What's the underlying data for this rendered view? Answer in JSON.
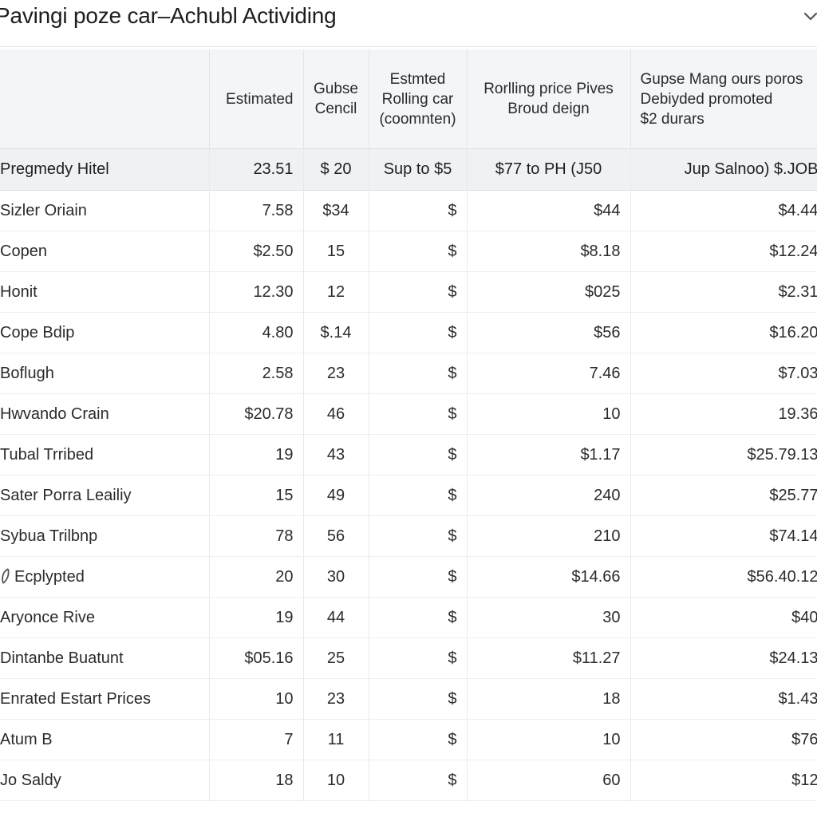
{
  "window": {
    "title": "Pavingi poze car–Achubl Actividing",
    "menu_icon": "chevron-down-icon"
  },
  "table": {
    "headers": [
      [
        ""
      ],
      [
        "Estimated"
      ],
      [
        "Gubse",
        "Cencil"
      ],
      [
        "Estmted",
        "Rolling car",
        "(coomnten)"
      ],
      [
        "Rorlling price Pives",
        "Broud deign"
      ],
      [
        "Gupse Mang ours poros",
        "Debiyded promoted",
        "$2 durars"
      ]
    ],
    "summary": {
      "name": "Pregmedy Hitel",
      "estimated": "23.51",
      "cancel": "$ 20",
      "rolling": "Sup to $5",
      "price": "$77 to PH (J50",
      "promo": "Jup Salnoo) $.JOB"
    },
    "rows": [
      {
        "name": "Sizler Oriain",
        "estimated": "7.58",
        "cancel": "$34",
        "rolling": "$",
        "price": "$44",
        "promo": "$4.44"
      },
      {
        "name": "Copen",
        "estimated": "$2.50",
        "cancel": "15",
        "rolling": "$",
        "price": "$8.18",
        "promo": "$12.24"
      },
      {
        "name": "Honit",
        "estimated": "12.30",
        "cancel": "12",
        "rolling": "$",
        "price": "$025",
        "promo": "$2.31"
      },
      {
        "name": "Cope Bdip",
        "estimated": "4.80",
        "cancel": "$.14",
        "rolling": "$",
        "price": "$56",
        "promo": "$16.20"
      },
      {
        "name": "Boflugh",
        "estimated": "2.58",
        "cancel": "23",
        "rolling": "$",
        "price": "7.46",
        "promo": "$7.03"
      },
      {
        "name": "Hwvando Crain",
        "estimated": "$20.78",
        "cancel": "46",
        "rolling": "$",
        "price": "10",
        "promo": "19.36"
      },
      {
        "name": "Tubal Trribed",
        "estimated": "19",
        "cancel": "43",
        "rolling": "$",
        "price": "$1.17",
        "promo": "$25.79.13"
      },
      {
        "name": "Sater Porra Leailiy",
        "estimated": "15",
        "cancel": "49",
        "rolling": "$",
        "price": "240",
        "promo": "$25.77"
      },
      {
        "name": "Sybua Trilbnp",
        "estimated": "78",
        "cancel": "56",
        "rolling": "$",
        "price": "210",
        "promo": "$74.14"
      },
      {
        "name": "Ecplypted",
        "estimated": "20",
        "cancel": "30",
        "rolling": "$",
        "price": "$14.66",
        "promo": "$56.40.12"
      },
      {
        "name": "Aryonce Rive",
        "estimated": "19",
        "cancel": "44",
        "rolling": "$",
        "price": "30",
        "promo": "$40"
      },
      {
        "name": "Dintanbe Buatunt",
        "estimated": "$05.16",
        "cancel": "25",
        "rolling": "$",
        "price": "$11.27",
        "promo": "$24.13"
      },
      {
        "name": "Enrated Estart Prices",
        "estimated": "10",
        "cancel": "23",
        "rolling": "$",
        "price": "18",
        "promo": "$1.43"
      },
      {
        "name": "Atum B",
        "estimated": "7",
        "cancel": "11",
        "rolling": "$",
        "price": "10",
        "promo": "$76"
      },
      {
        "name": "Jo Saldy",
        "estimated": "18",
        "cancel": "10",
        "rolling": "$",
        "price": "60",
        "promo": "$12"
      }
    ]
  },
  "colors": {
    "header_bg": "#f3f6f7",
    "summary_bg": "#eef2f4",
    "grid_line": "#e7e9eb",
    "muted_text": "#8a8d90"
  }
}
